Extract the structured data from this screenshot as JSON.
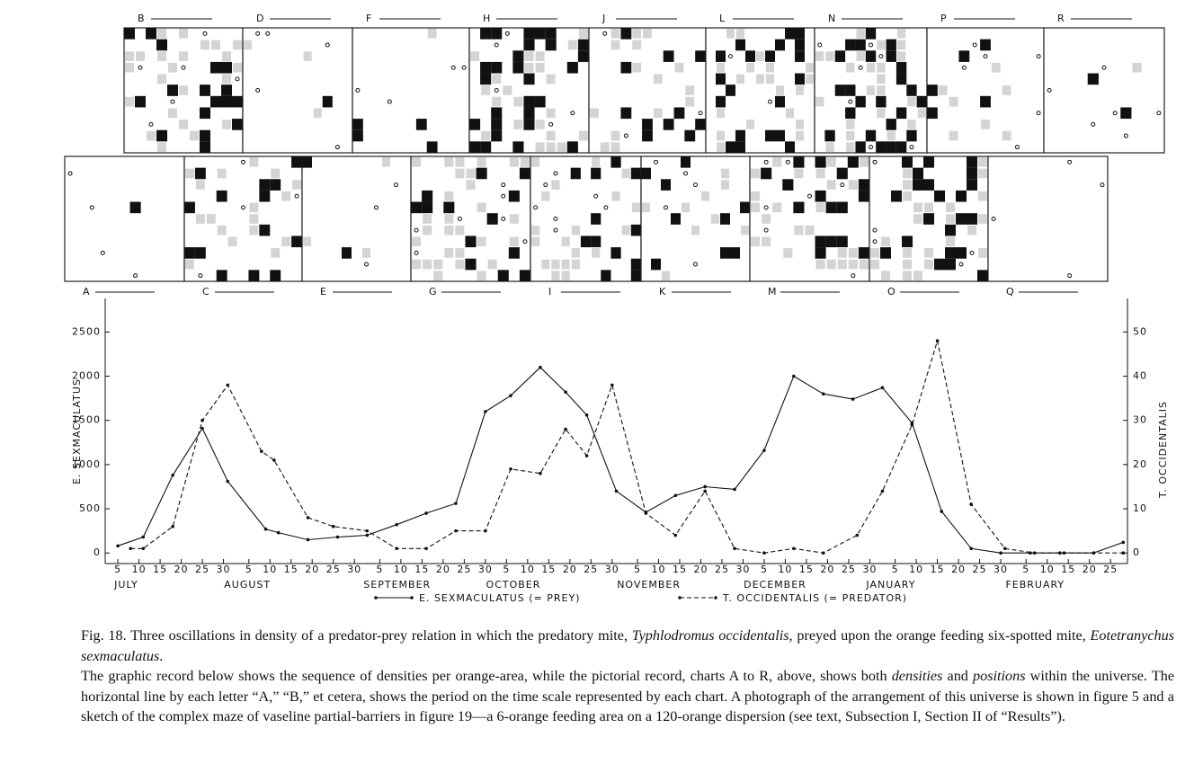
{
  "panels": {
    "top": [
      "B",
      "D",
      "F",
      "H",
      "J",
      "L",
      "N",
      "P",
      "R"
    ],
    "bottom": [
      "A",
      "C",
      "E",
      "G",
      "I",
      "K",
      "M",
      "O",
      "Q"
    ]
  },
  "chart_data": {
    "type": "line",
    "y_label": "E. SEXMACULATUS",
    "y2_label": "T. OCCIDENTALIS",
    "xlim": [
      2,
      244
    ],
    "ylim": [
      -120,
      2880
    ],
    "y2lim": [
      -2.4,
      57.6
    ],
    "yticks": [
      0,
      500,
      1000,
      1500,
      2000,
      2500
    ],
    "y2ticks": [
      0,
      10,
      20,
      30,
      40,
      50
    ],
    "xticks": [
      {
        "value": 5,
        "label": "5"
      },
      {
        "value": 10,
        "label": "10"
      },
      {
        "value": 15,
        "label": "15"
      },
      {
        "value": 20,
        "label": "20"
      },
      {
        "value": 25,
        "label": "25"
      },
      {
        "value": 30,
        "label": "30"
      },
      {
        "value": 36,
        "label": "5"
      },
      {
        "value": 41,
        "label": "10"
      },
      {
        "value": 46,
        "label": "15"
      },
      {
        "value": 51,
        "label": "20"
      },
      {
        "value": 56,
        "label": "25"
      },
      {
        "value": 61,
        "label": "30"
      },
      {
        "value": 67,
        "label": "5"
      },
      {
        "value": 72,
        "label": "10"
      },
      {
        "value": 77,
        "label": "15"
      },
      {
        "value": 82,
        "label": "20"
      },
      {
        "value": 87,
        "label": "25"
      },
      {
        "value": 92,
        "label": "30"
      },
      {
        "value": 97,
        "label": "5"
      },
      {
        "value": 102,
        "label": "10"
      },
      {
        "value": 107,
        "label": "15"
      },
      {
        "value": 112,
        "label": "20"
      },
      {
        "value": 117,
        "label": "25"
      },
      {
        "value": 122,
        "label": "30"
      },
      {
        "value": 128,
        "label": "5"
      },
      {
        "value": 133,
        "label": "10"
      },
      {
        "value": 138,
        "label": "15"
      },
      {
        "value": 143,
        "label": "20"
      },
      {
        "value": 148,
        "label": "25"
      },
      {
        "value": 153,
        "label": "30"
      },
      {
        "value": 158,
        "label": "5"
      },
      {
        "value": 163,
        "label": "10"
      },
      {
        "value": 168,
        "label": "15"
      },
      {
        "value": 173,
        "label": "20"
      },
      {
        "value": 178,
        "label": "25"
      },
      {
        "value": 183,
        "label": "30"
      },
      {
        "value": 189,
        "label": "5"
      },
      {
        "value": 194,
        "label": "10"
      },
      {
        "value": 199,
        "label": "15"
      },
      {
        "value": 204,
        "label": "20"
      },
      {
        "value": 209,
        "label": "25"
      },
      {
        "value": 214,
        "label": "30"
      },
      {
        "value": 220,
        "label": "5"
      },
      {
        "value": 225,
        "label": "10"
      },
      {
        "value": 230,
        "label": "15"
      },
      {
        "value": 235,
        "label": "20"
      },
      {
        "value": 240,
        "label": "25"
      }
    ],
    "month_labels": [
      {
        "value": 5,
        "label": "JULY"
      },
      {
        "value": 31,
        "label": "AUGUST"
      },
      {
        "value": 64,
        "label": "SEPTEMBER"
      },
      {
        "value": 93,
        "label": "OCTOBER"
      },
      {
        "value": 124,
        "label": "NOVEMBER"
      },
      {
        "value": 154,
        "label": "DECEMBER"
      },
      {
        "value": 183,
        "label": "JANUARY"
      },
      {
        "value": 216,
        "label": "FEBRUARY"
      }
    ],
    "series": [
      {
        "name": "E. SEXMACULATUS (= PREY)",
        "color": "#111111",
        "line_style": "solid",
        "x": [
          5,
          11,
          18,
          25,
          31,
          40,
          43,
          50,
          57,
          64,
          71,
          78,
          85,
          92,
          98,
          105,
          111,
          116,
          123,
          130,
          137,
          144,
          151,
          158,
          165,
          172,
          179,
          186,
          193,
          200,
          207,
          214,
          221,
          229,
          236,
          243
        ],
        "values": [
          80,
          180,
          880,
          1410,
          810,
          270,
          230,
          150,
          180,
          200,
          320,
          450,
          560,
          1600,
          1780,
          2100,
          1820,
          1560,
          700,
          460,
          650,
          750,
          720,
          1160,
          2000,
          1800,
          1740,
          1870,
          1470,
          470,
          50,
          0,
          0,
          0,
          0,
          120
        ]
      },
      {
        "name": "T. OCCIDENTALIS (= PREDATOR)",
        "color": "#111111",
        "line_style": "dashed",
        "axis": "y2",
        "x": [
          8,
          11,
          18,
          25,
          31,
          39,
          42,
          50,
          56,
          64,
          71,
          78,
          85,
          92,
          98,
          105,
          111,
          116,
          122,
          130,
          137,
          144,
          151,
          158,
          165,
          172,
          180,
          186,
          193,
          199,
          207,
          215,
          222,
          228,
          236,
          243
        ],
        "values": [
          1,
          1,
          6,
          30,
          38,
          23,
          21,
          8,
          6,
          5,
          1,
          1,
          5,
          5,
          19,
          18,
          28,
          22,
          38,
          9,
          4,
          14,
          1,
          0,
          1,
          0,
          4,
          14,
          29,
          48,
          11,
          1,
          0,
          0,
          0,
          0
        ]
      }
    ]
  },
  "caption": {
    "p1": [
      "Fig. 18. Three oscillations in density of a predator-prey relation in which the predatory mite, ",
      "Typhlodromus occidentalis",
      ", preyed upon the orange feeding six-spotted mite, ",
      "Eotetranychus sexmaculatus",
      "."
    ],
    "p2": [
      "The graphic record below shows the sequence of densities per orange-area, while the pictorial record, charts A to R, above, shows both ",
      "densities",
      " and ",
      "positions",
      " within the universe. The horizontal line by each letter “A,” “B,” et cetera, shows the period on the time scale represented by each chart. A photograph of the arrangement of this universe is shown in figure 5 and a sketch of the complex maze of vaseline partial-barriers in figure 19—a 6-orange feeding area on a 120-orange dispersion (see text, Subsection I, Section II of “Results”)."
    ]
  }
}
